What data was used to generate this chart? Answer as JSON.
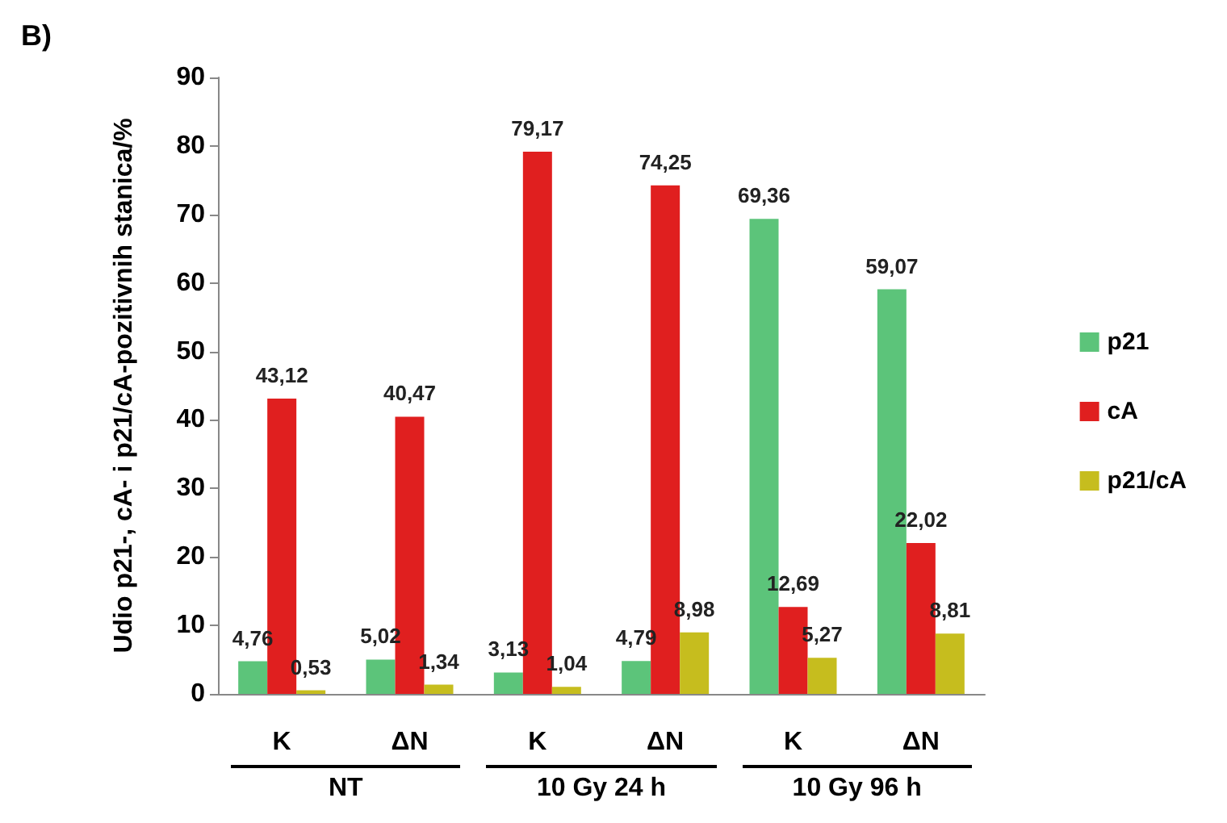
{
  "chart_data": {
    "type": "bar",
    "title": "B)",
    "ylabel": "Udio p21-, cA- i p21/cA-pozitivnih stanica/%",
    "categories": [
      "K",
      "ΔN",
      "K",
      "ΔN",
      "K",
      "ΔN"
    ],
    "series": [
      {
        "name": "p21",
        "color": "#5cc47a",
        "values": [
          4.76,
          5.02,
          3.13,
          4.79,
          69.36,
          59.07
        ],
        "value_labels": [
          "4,76",
          "5,02",
          "3,13",
          "4,79",
          "69,36",
          "59,07"
        ]
      },
      {
        "name": "cA",
        "color": "#e01f1f",
        "values": [
          43.12,
          40.47,
          79.17,
          74.25,
          12.69,
          22.02
        ],
        "value_labels": [
          "43,12",
          "40,47",
          "79,17",
          "74,25",
          "12,69",
          "22,02"
        ]
      },
      {
        "name": "p21/cA",
        "color": "#c6bd1e",
        "values": [
          0.53,
          1.34,
          1.04,
          8.98,
          5.27,
          8.81
        ],
        "value_labels": [
          "0,53",
          "1,34",
          "1,04",
          "8,98",
          "5,27",
          "8,81"
        ]
      }
    ],
    "annotations": [
      "NT",
      "10 Gy 24 h",
      "10 Gy 96 h"
    ],
    "ylim": [
      0,
      90
    ],
    "yticks": [
      0,
      10,
      20,
      30,
      40,
      50,
      60,
      70,
      80,
      90
    ],
    "grid": false,
    "legend": "right"
  }
}
